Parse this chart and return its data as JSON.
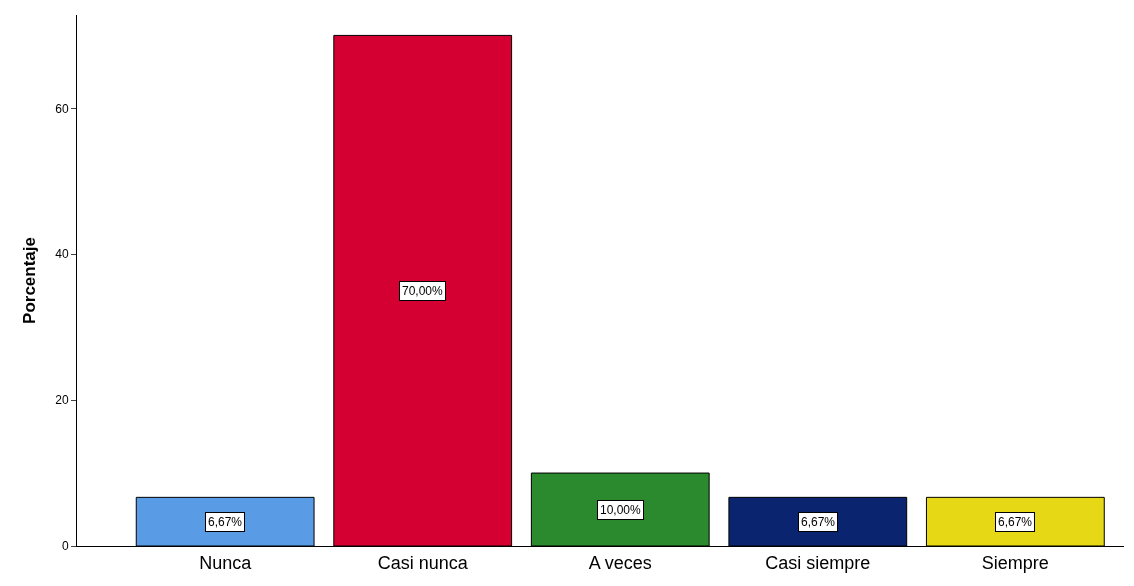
{
  "chart_data": {
    "type": "bar",
    "ylabel": "Porcentaje",
    "categories": [
      "Nunca",
      "Casi nunca",
      "A veces",
      "Casi siempre",
      "Siempre"
    ],
    "values": [
      6.67,
      70.0,
      10.0,
      6.67,
      6.67
    ],
    "value_labels": [
      "6,67%",
      "70,00%",
      "10,00%",
      "6,67%",
      "6,67%"
    ],
    "colors": [
      "#5a9be6",
      "#d50032",
      "#2b8a2e",
      "#0b2470",
      "#e6d815"
    ],
    "ylim": [
      0,
      72.8
    ],
    "yticks": [
      0,
      20,
      40,
      60
    ]
  }
}
